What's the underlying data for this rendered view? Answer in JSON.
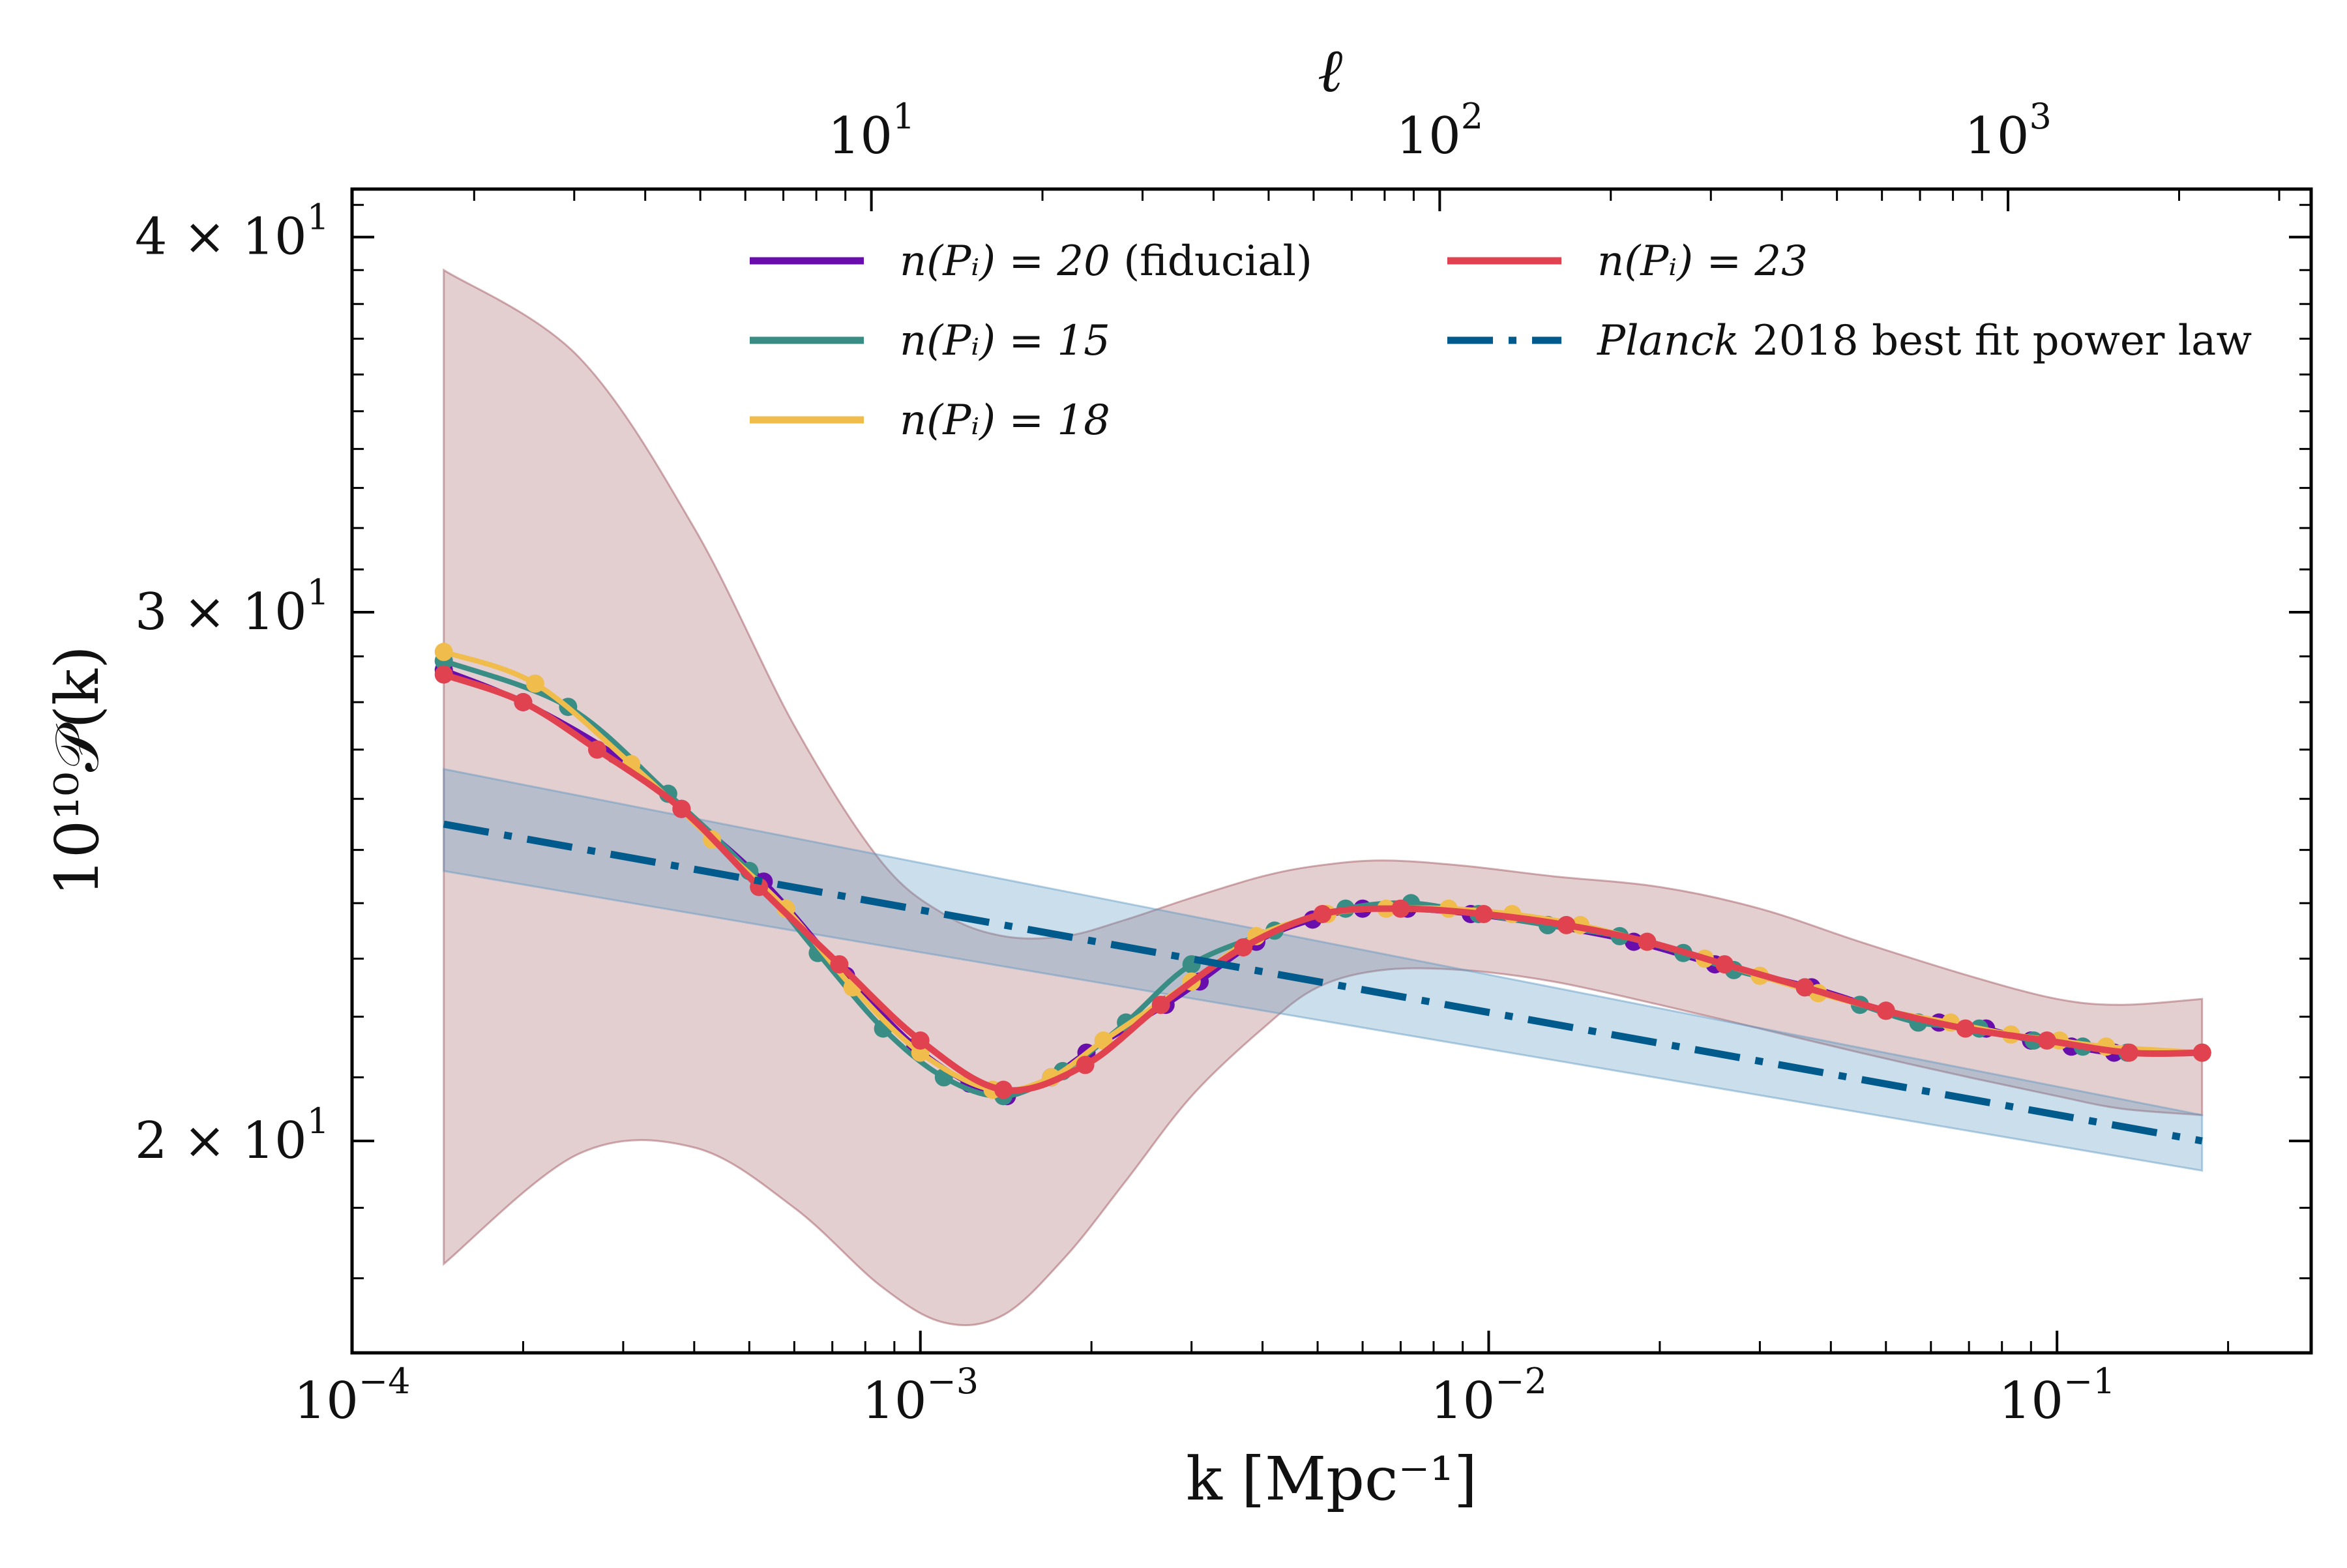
{
  "chart_data": {
    "type": "line",
    "x_scale": "log",
    "y_scale": "log",
    "xlabel": "k [Mpc⁻¹]",
    "ylabel": "10¹⁰𝒫(k)",
    "top_xlabel": "ℓ",
    "xlim": [
      0.0001,
      0.28
    ],
    "ylim": [
      17.0,
      41.5
    ],
    "x_ticks": [
      {
        "value": 0.0001,
        "base": "10",
        "exp": "−4"
      },
      {
        "value": 0.001,
        "base": "10",
        "exp": "−3"
      },
      {
        "value": 0.01,
        "base": "10",
        "exp": "−2"
      },
      {
        "value": 0.1,
        "base": "10",
        "exp": "−1"
      }
    ],
    "top_ticks": [
      {
        "k": 0.00082,
        "base": "10",
        "exp": "1"
      },
      {
        "k": 0.0082,
        "base": "10",
        "exp": "2"
      },
      {
        "k": 0.082,
        "base": "10",
        "exp": "3"
      }
    ],
    "y_ticks": [
      {
        "value": 20,
        "mant": "2 × 10",
        "exp": "1"
      },
      {
        "value": 30,
        "mant": "3 × 10",
        "exp": "1"
      },
      {
        "value": 40,
        "mant": "4 × 10",
        "exp": "1"
      }
    ],
    "legend_position": "top",
    "series": [
      {
        "name": "fiducial",
        "label_main": "n(Pᵢ) = 20",
        "label_suffix": " (fiducial)",
        "color": "#6a0dad",
        "style": "solid",
        "x": [
          0.000145,
          0.0002,
          0.00029,
          0.00038,
          0.00053,
          0.00074,
          0.00098,
          0.00122,
          0.00142,
          0.0017,
          0.00196,
          0.0027,
          0.0031,
          0.0039,
          0.0049,
          0.006,
          0.0072,
          0.0093,
          0.0127,
          0.018,
          0.025,
          0.037,
          0.05,
          0.062,
          0.075,
          0.09,
          0.106,
          0.126,
          0.18
        ],
        "y": [
          28.7,
          28.0,
          26.9,
          25.8,
          24.4,
          22.7,
          21.5,
          20.9,
          20.7,
          21.0,
          21.4,
          22.2,
          22.6,
          23.3,
          23.7,
          23.9,
          23.9,
          23.8,
          23.6,
          23.3,
          22.9,
          22.5,
          22.1,
          21.9,
          21.8,
          21.6,
          21.5,
          21.4,
          21.4
        ]
      },
      {
        "name": "fifteen",
        "label_main": "n(Pᵢ) = 15",
        "label_suffix": "",
        "color": "#3a8d85",
        "style": "solid",
        "x": [
          0.000145,
          0.00024,
          0.00036,
          0.0005,
          0.00066,
          0.00086,
          0.0011,
          0.0014,
          0.00178,
          0.0023,
          0.003,
          0.0042,
          0.0056,
          0.0073,
          0.0096,
          0.0127,
          0.017,
          0.022,
          0.027,
          0.036,
          0.045,
          0.057,
          0.073,
          0.091,
          0.111,
          0.133,
          0.18
        ],
        "y": [
          28.9,
          27.9,
          26.1,
          24.6,
          23.1,
          21.8,
          21.0,
          20.7,
          21.1,
          21.9,
          22.9,
          23.5,
          23.9,
          24.0,
          23.8,
          23.6,
          23.4,
          23.1,
          22.8,
          22.5,
          22.2,
          21.9,
          21.8,
          21.6,
          21.5,
          21.4,
          21.4
        ]
      },
      {
        "name": "eighteen",
        "label_main": "n(Pᵢ) = 18",
        "label_suffix": "",
        "color": "#f0bd4c",
        "style": "solid",
        "x": [
          0.000145,
          0.00021,
          0.00031,
          0.00043,
          0.00058,
          0.00076,
          0.001,
          0.00134,
          0.0017,
          0.0021,
          0.003,
          0.0039,
          0.0052,
          0.0066,
          0.0085,
          0.011,
          0.0145,
          0.019,
          0.024,
          0.03,
          0.038,
          0.05,
          0.065,
          0.083,
          0.101,
          0.122,
          0.18
        ],
        "y": [
          29.1,
          28.4,
          26.7,
          25.2,
          23.9,
          22.5,
          21.4,
          20.8,
          21.0,
          21.6,
          22.6,
          23.4,
          23.8,
          23.9,
          23.9,
          23.8,
          23.6,
          23.3,
          23.0,
          22.7,
          22.4,
          22.1,
          21.9,
          21.7,
          21.6,
          21.5,
          21.4
        ]
      },
      {
        "name": "twentythree",
        "label_main": "n(Pᵢ) = 23",
        "label_suffix": "",
        "color": "#e0434f",
        "style": "solid",
        "x": [
          0.000145,
          0.0002,
          0.00027,
          0.00038,
          0.00052,
          0.00072,
          0.001,
          0.0014,
          0.00195,
          0.00265,
          0.0037,
          0.0051,
          0.007,
          0.0098,
          0.0137,
          0.019,
          0.026,
          0.036,
          0.05,
          0.069,
          0.096,
          0.134,
          0.18
        ],
        "y": [
          28.6,
          28.0,
          27.0,
          25.8,
          24.3,
          22.9,
          21.6,
          20.8,
          21.2,
          22.2,
          23.2,
          23.8,
          23.9,
          23.8,
          23.6,
          23.3,
          22.9,
          22.5,
          22.1,
          21.8,
          21.6,
          21.4,
          21.4
        ]
      },
      {
        "name": "planck",
        "label_main": "Planck",
        "label_suffix": " 2018 best fit power law",
        "color": "#005a8c",
        "style": "dashdot",
        "x": [
          0.000145,
          0.18
        ],
        "y": [
          25.5,
          20.0
        ]
      }
    ],
    "bands": [
      {
        "name": "reconstruction-band",
        "color": "#9b4e57",
        "opacity": 0.28,
        "x": [
          0.000145,
          0.00025,
          0.0004,
          0.0006,
          0.00085,
          0.0011,
          0.0014,
          0.0018,
          0.0023,
          0.003,
          0.004,
          0.005,
          0.0065,
          0.009,
          0.013,
          0.02,
          0.03,
          0.045,
          0.07,
          0.1,
          0.13,
          0.18
        ],
        "upper": [
          39.0,
          36.5,
          32.0,
          27.5,
          24.8,
          23.8,
          23.4,
          23.4,
          23.7,
          24.1,
          24.5,
          24.7,
          24.8,
          24.7,
          24.5,
          24.3,
          23.9,
          23.3,
          22.7,
          22.3,
          22.2,
          22.3
        ],
        "lower": [
          18.2,
          19.8,
          19.9,
          19.0,
          17.9,
          17.4,
          17.5,
          18.3,
          19.4,
          20.7,
          21.8,
          22.5,
          22.8,
          22.8,
          22.6,
          22.2,
          21.8,
          21.4,
          21.0,
          20.7,
          20.5,
          20.4
        ]
      },
      {
        "name": "planck-band",
        "color": "#5d97c2",
        "opacity": 0.32,
        "x": [
          0.000145,
          0.18
        ],
        "upper": [
          26.6,
          20.4
        ],
        "lower": [
          24.6,
          19.55
        ]
      }
    ]
  }
}
